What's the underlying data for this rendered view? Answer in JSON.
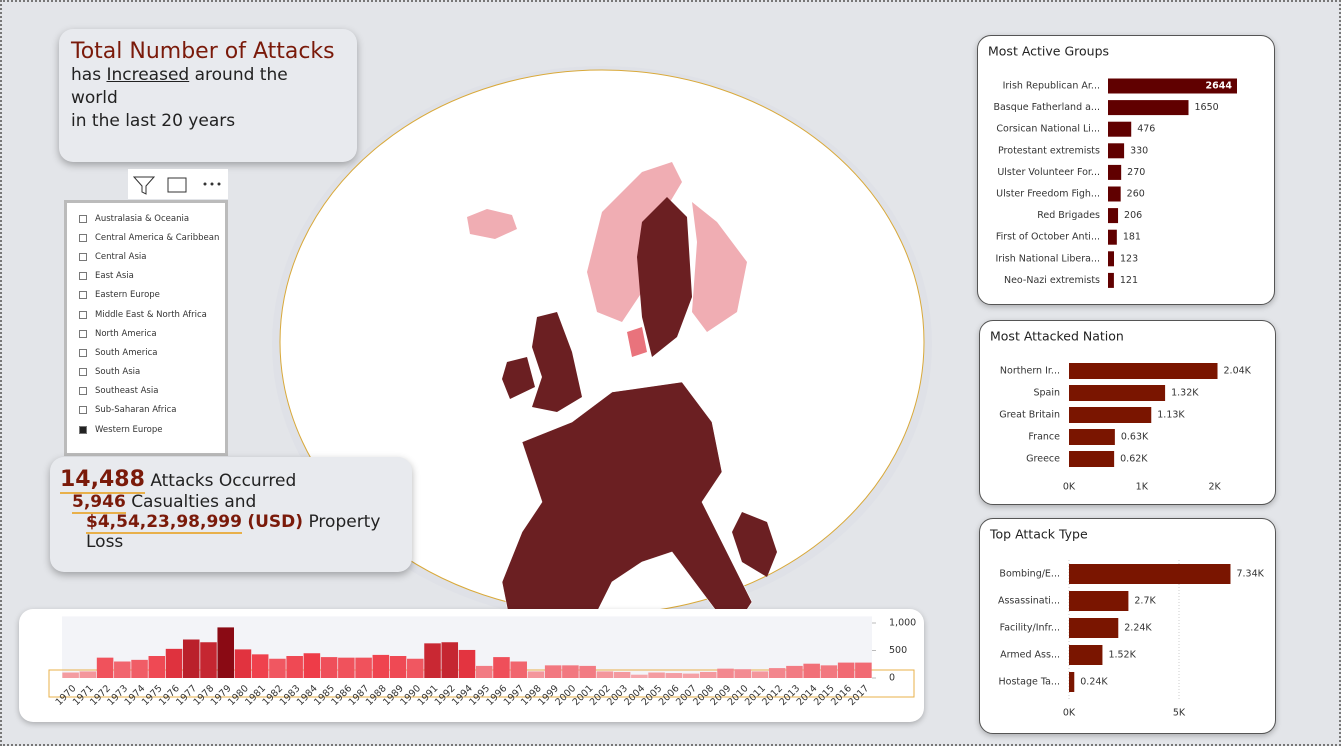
{
  "headline": {
    "title": "Total Number of Attacks",
    "line_start": "has",
    "emphasis": "Increased",
    "line_end": "around the world",
    "line2": "in the last 20 years"
  },
  "region_filter": {
    "items": [
      "Australasia & Oceania",
      "Central America & Caribbean",
      "Central Asia",
      "East Asia",
      "Eastern Europe",
      "Middle East & North Africa",
      "North America",
      "South America",
      "South Asia",
      "Southeast Asia",
      "Sub-Saharan Africa",
      "Western Europe"
    ],
    "selected": "Western Europe"
  },
  "kpis": {
    "attacks": "14,488",
    "attacks_label": "Attacks Occurred",
    "casualties": "5,946",
    "casualties_label": "Casualties and",
    "property_loss": "$4,54,23,98,999",
    "property_unit": "(USD)",
    "property_label": "Property Loss"
  },
  "chart_data": [
    {
      "type": "hbar",
      "title": "Most Active Groups",
      "color": "#600000",
      "categories": [
        "Irish Republican Ar...",
        "Basque Fatherland a...",
        "Corsican National Li...",
        "Protestant extremists",
        "Ulster Volunteer For...",
        "Ulster Freedom Figh...",
        "Red Brigades",
        "First of October Anti...",
        "Irish National Libera...",
        "Neo-Nazi extremists"
      ],
      "values": [
        2644,
        1650,
        476,
        330,
        270,
        260,
        206,
        181,
        123,
        121
      ]
    },
    {
      "type": "hbar",
      "title": "Most Attacked Nation",
      "color": "#7a1500",
      "categories": [
        "Northern Ir...",
        "Spain",
        "Great Britain",
        "France",
        "Greece"
      ],
      "values": [
        2040,
        1320,
        1130,
        630,
        620
      ],
      "value_labels": [
        "2.04K",
        "1.32K",
        "1.13K",
        "0.63K",
        "0.62K"
      ],
      "xlim": [
        0,
        2500
      ],
      "xticks": [
        {
          "value": 0,
          "label": "0K"
        },
        {
          "value": 1000,
          "label": "1K"
        },
        {
          "value": 2000,
          "label": "2K"
        }
      ]
    },
    {
      "type": "hbar",
      "title": "Top Attack Type",
      "color": "#7a1500",
      "grid": true,
      "categories": [
        "Bombing/E...",
        "Assassinati...",
        "Facility/Infr...",
        "Armed Ass...",
        "Hostage Ta..."
      ],
      "values": [
        7340,
        2700,
        2240,
        1520,
        240
      ],
      "value_labels": [
        "7.34K",
        "2.7K",
        "2.24K",
        "1.52K",
        "0.24K"
      ],
      "xlim": [
        0,
        8500
      ],
      "xticks": [
        {
          "value": 0,
          "label": "0K"
        },
        {
          "value": 5000,
          "label": "5K"
        }
      ]
    },
    {
      "type": "bar",
      "color_scale": [
        "#f6b7bb",
        "#ee3945",
        "#8a0a14"
      ],
      "categories": [
        "1970",
        "1971",
        "1972",
        "1973",
        "1974",
        "1975",
        "1976",
        "1977",
        "1978",
        "1979",
        "1980",
        "1981",
        "1982",
        "1983",
        "1984",
        "1985",
        "1986",
        "1987",
        "1988",
        "1989",
        "1990",
        "1991",
        "1992",
        "1994",
        "1995",
        "1996",
        "1997",
        "1998",
        "1999",
        "2000",
        "2001",
        "2002",
        "2003",
        "2004",
        "2005",
        "2006",
        "2007",
        "2008",
        "2009",
        "2010",
        "2011",
        "2012",
        "2013",
        "2014",
        "2015",
        "2016",
        "2017"
      ],
      "values": [
        100,
        120,
        370,
        300,
        330,
        400,
        530,
        700,
        650,
        920,
        520,
        430,
        350,
        400,
        450,
        380,
        370,
        370,
        420,
        400,
        350,
        630,
        650,
        510,
        220,
        380,
        300,
        120,
        230,
        230,
        220,
        120,
        110,
        60,
        100,
        90,
        80,
        110,
        170,
        160,
        120,
        180,
        220,
        260,
        230,
        280,
        280
      ],
      "ylim": [
        0,
        1120
      ],
      "yticks": [
        0,
        500,
        {
          "value": 1000,
          "label": "1,000"
        }
      ]
    }
  ]
}
